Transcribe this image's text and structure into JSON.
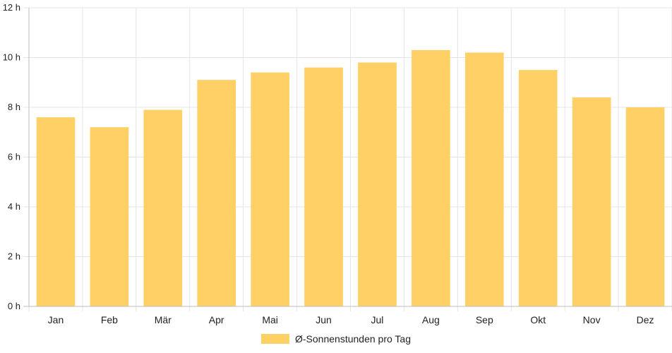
{
  "chart_data": {
    "type": "bar",
    "categories": [
      "Jan",
      "Feb",
      "Mär",
      "Apr",
      "Mai",
      "Jun",
      "Jul",
      "Aug",
      "Sep",
      "Okt",
      "Nov",
      "Dez"
    ],
    "series": [
      {
        "name": "Ø-Sonnenstunden pro Tag",
        "values": [
          7.6,
          7.2,
          7.9,
          9.1,
          9.4,
          9.6,
          9.8,
          10.3,
          10.2,
          9.5,
          8.4,
          8.0
        ]
      }
    ],
    "y_ticks": [
      "0 h",
      "2 h",
      "4 h",
      "6 h",
      "8 h",
      "10 h",
      "12 h"
    ],
    "ylim": [
      0,
      12
    ],
    "grid": true,
    "legend": "bottom-center",
    "bar_color": "#fed065",
    "grid_color": "#e5e5e5",
    "axis_color": "#bdbdbd"
  }
}
